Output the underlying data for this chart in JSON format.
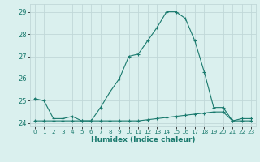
{
  "x": [
    0,
    1,
    2,
    3,
    4,
    5,
    6,
    7,
    8,
    9,
    10,
    11,
    12,
    13,
    14,
    15,
    16,
    17,
    18,
    19,
    20,
    21,
    22,
    23
  ],
  "y_humidex": [
    25.1,
    25.0,
    24.2,
    24.2,
    24.3,
    24.1,
    24.1,
    24.7,
    25.4,
    26.0,
    27.0,
    27.1,
    27.7,
    28.3,
    29.0,
    29.0,
    28.7,
    27.7,
    26.3,
    24.7,
    24.7,
    24.1,
    24.2,
    24.2
  ],
  "y_flat": [
    24.1,
    24.1,
    24.1,
    24.1,
    24.1,
    24.1,
    24.1,
    24.1,
    24.1,
    24.1,
    24.1,
    24.1,
    24.15,
    24.2,
    24.25,
    24.3,
    24.35,
    24.4,
    24.45,
    24.5,
    24.5,
    24.1,
    24.1,
    24.1
  ],
  "line_color": "#1a7a6e",
  "bg_color": "#daf0ee",
  "grid_color": "#c0d8d8",
  "xlabel": "Humidex (Indice chaleur)",
  "ylim": [
    23.85,
    29.35
  ],
  "yticks": [
    24,
    25,
    26,
    27,
    28,
    29
  ],
  "xtick_labels": [
    "0",
    "1",
    "2",
    "3",
    "4",
    "5",
    "6",
    "7",
    "8",
    "9",
    "10",
    "11",
    "12",
    "13",
    "14",
    "15",
    "16",
    "17",
    "18",
    "19",
    "20",
    "21",
    "22",
    "23"
  ],
  "marker": "+"
}
